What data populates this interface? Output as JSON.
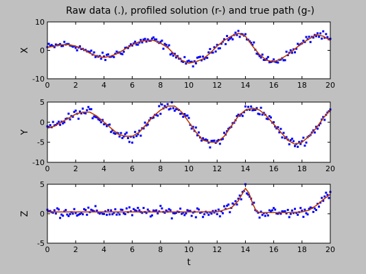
{
  "chart_data": {
    "title": "Raw data (.), profiled solution (r-) and true path (g-)",
    "panels": [
      {
        "type": "line",
        "ylabel": "X",
        "xlabel": "",
        "xlim": [
          0,
          20
        ],
        "ylim": [
          -10,
          10
        ],
        "xticks": [
          0,
          2,
          4,
          6,
          8,
          10,
          12,
          14,
          16,
          18,
          20
        ],
        "yticks": [
          -10,
          0,
          10
        ],
        "x": [
          0,
          0.5,
          1,
          1.5,
          2,
          2.5,
          3,
          3.5,
          4,
          4.5,
          5,
          5.5,
          6,
          6.5,
          7,
          7.5,
          8,
          8.5,
          9,
          9.5,
          10,
          10.5,
          11,
          11.5,
          12,
          12.5,
          13,
          13.5,
          14,
          14.5,
          15,
          15.5,
          16,
          16.5,
          17,
          17.5,
          18,
          18.5,
          19,
          19.5,
          20
        ],
        "series": [
          {
            "role": "profiled",
            "values": [
              1,
              1.5,
              2,
              2,
              1.5,
              0.5,
              -1,
              -2,
              -2.5,
              -2,
              -1,
              0.5,
              2,
              3,
              3.5,
              3.5,
              2.5,
              1,
              -1.5,
              -3.5,
              -4.5,
              -4,
              -3,
              -1,
              1.5,
              3.5,
              5,
              6,
              5,
              1.5,
              -1.5,
              -3.5,
              -4,
              -3,
              -1.5,
              0.5,
              2.5,
              4,
              5.5,
              5,
              3.5
            ]
          },
          {
            "role": "true",
            "values": [
              1,
              1.5,
              2,
              2,
              1.5,
              0.5,
              -1,
              -2,
              -2.5,
              -2,
              -1,
              0.5,
              2,
              3,
              3.5,
              3.5,
              2.5,
              1,
              -1.5,
              -3.5,
              -4.5,
              -4,
              -3,
              -1,
              1.5,
              3.5,
              5,
              6,
              5,
              1.5,
              -1.5,
              -3.5,
              -4,
              -3,
              -1.5,
              0.5,
              2.5,
              4,
              5.5,
              5,
              3.5
            ]
          },
          {
            "role": "raw",
            "noise": 1.0,
            "points_per_unit": 10
          }
        ]
      },
      {
        "type": "line",
        "ylabel": "Y",
        "xlabel": "",
        "xlim": [
          0,
          20
        ],
        "ylim": [
          -10,
          5
        ],
        "xticks": [
          0,
          2,
          4,
          6,
          8,
          10,
          12,
          14,
          16,
          18,
          20
        ],
        "yticks": [
          -10,
          -5,
          0,
          5
        ],
        "x": [
          0,
          0.5,
          1,
          1.5,
          2,
          2.5,
          3,
          3.5,
          4,
          4.5,
          5,
          5.5,
          6,
          6.5,
          7,
          7.5,
          8,
          8.5,
          9,
          9.5,
          10,
          10.5,
          11,
          11.5,
          12,
          12.5,
          13,
          13.5,
          14,
          14.5,
          15,
          15.5,
          16,
          16.5,
          17,
          17.5,
          18,
          18.5,
          19,
          19.5,
          20
        ],
        "series": [
          {
            "role": "profiled",
            "values": [
              -1.5,
              -1,
              0,
              1,
              2,
              2.5,
              2.5,
              1.5,
              0,
              -1.5,
              -3,
              -3.5,
              -3.5,
              -2.5,
              -0.5,
              1.5,
              3,
              4,
              4,
              2.5,
              0,
              -2.5,
              -4.5,
              -5,
              -5,
              -3.5,
              -1,
              1.5,
              3,
              3.5,
              3,
              1.5,
              -0.5,
              -2.5,
              -4.5,
              -5.5,
              -5,
              -3.5,
              -1.5,
              1,
              3
            ]
          },
          {
            "role": "true",
            "values": [
              -1.5,
              -1,
              0,
              1,
              2,
              2.5,
              2.5,
              1.5,
              0,
              -1.5,
              -3,
              -3.5,
              -3.5,
              -2.5,
              -0.5,
              1.5,
              3,
              4,
              4,
              2.5,
              0,
              -2.5,
              -4.5,
              -5,
              -5,
              -3.5,
              -1,
              1.5,
              3,
              3.5,
              3,
              1.5,
              -0.5,
              -2.5,
              -4.5,
              -5.5,
              -5,
              -3.5,
              -1.5,
              1,
              3
            ]
          },
          {
            "role": "raw",
            "noise": 0.8,
            "points_per_unit": 10
          }
        ]
      },
      {
        "type": "line",
        "ylabel": "Z",
        "xlabel": "t",
        "xlim": [
          0,
          20
        ],
        "ylim": [
          -5,
          5
        ],
        "xticks": [
          0,
          2,
          4,
          6,
          8,
          10,
          12,
          14,
          16,
          18,
          20
        ],
        "yticks": [
          -5,
          0,
          5
        ],
        "x": [
          0,
          1,
          2,
          3,
          4,
          5,
          6,
          7,
          8,
          9,
          10,
          11,
          12,
          13,
          13.5,
          14,
          14.25,
          14.5,
          14.75,
          15,
          15.5,
          16,
          17,
          18,
          18.5,
          19,
          19.5,
          20
        ],
        "series": [
          {
            "role": "profiled",
            "values": [
              0.3,
              0.3,
              0.3,
              0.3,
              0.3,
              0.3,
              0.3,
              0.3,
              0.3,
              0.3,
              0.3,
              0.3,
              0.3,
              1,
              2.2,
              4.3,
              3.5,
              1.8,
              0.5,
              0.2,
              0.2,
              0.2,
              0.2,
              0.3,
              0.6,
              1.4,
              2.4,
              3.3
            ]
          },
          {
            "role": "true",
            "values": [
              0.3,
              0.3,
              0.3,
              0.3,
              0.3,
              0.3,
              0.3,
              0.3,
              0.3,
              0.3,
              0.3,
              0.3,
              0.3,
              1,
              2.2,
              4.3,
              3.5,
              1.8,
              0.5,
              0.2,
              0.2,
              0.2,
              0.2,
              0.3,
              0.6,
              1.4,
              2.4,
              3.3
            ]
          },
          {
            "role": "raw",
            "noise": 0.6,
            "points_per_unit": 10
          }
        ]
      }
    ],
    "colors": {
      "raw": "#0000ff",
      "profiled": "#ff0000",
      "true": "#00ff00",
      "background": "#c0c0c0",
      "axes": "#ffffff"
    }
  }
}
